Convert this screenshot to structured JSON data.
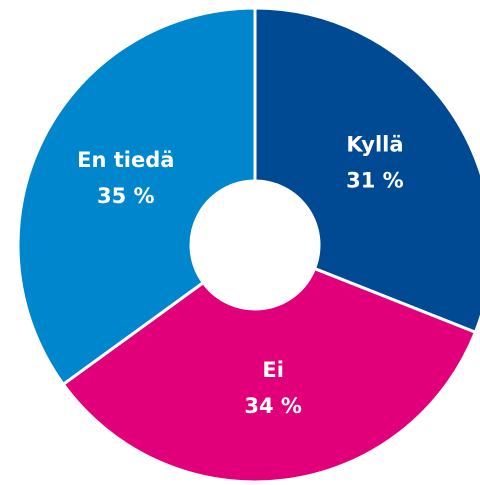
{
  "chart_data": {
    "type": "donut",
    "categories": [
      "Kyllä",
      "Ei",
      "En tiedä"
    ],
    "values": [
      31,
      34,
      35
    ],
    "value_labels": [
      "31 %",
      "34 %",
      "35 %"
    ],
    "colors": [
      "#004a94",
      "#e2007a",
      "#0086cd"
    ]
  }
}
